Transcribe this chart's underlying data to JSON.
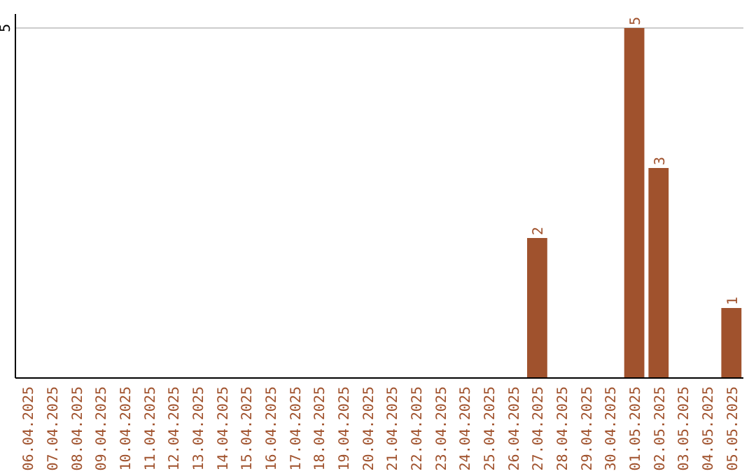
{
  "chart_data": {
    "type": "bar",
    "categories": [
      "06.04.2025",
      "07.04.2025",
      "08.04.2025",
      "09.04.2025",
      "10.04.2025",
      "11.04.2025",
      "12.04.2025",
      "13.04.2025",
      "14.04.2025",
      "15.04.2025",
      "16.04.2025",
      "17.04.2025",
      "18.04.2025",
      "19.04.2025",
      "20.04.2025",
      "21.04.2025",
      "22.04.2025",
      "23.04.2025",
      "24.04.2025",
      "25.04.2025",
      "26.04.2025",
      "27.04.2025",
      "28.04.2025",
      "29.04.2025",
      "30.04.2025",
      "01.05.2025",
      "02.05.2025",
      "03.05.2025",
      "04.05.2025",
      "05.05.2025"
    ],
    "values": [
      null,
      null,
      null,
      null,
      null,
      null,
      null,
      null,
      null,
      null,
      null,
      null,
      null,
      null,
      null,
      null,
      null,
      null,
      null,
      null,
      null,
      2,
      null,
      null,
      null,
      5,
      3,
      null,
      null,
      1
    ],
    "value_labels": [
      null,
      null,
      null,
      null,
      null,
      null,
      null,
      null,
      null,
      null,
      null,
      null,
      null,
      null,
      null,
      null,
      null,
      null,
      null,
      null,
      null,
      "2",
      null,
      null,
      null,
      "5",
      "3",
      null,
      null,
      "1"
    ],
    "color": "#a0522d",
    "ylim": [
      0,
      5.2
    ],
    "yticks": [
      5
    ],
    "grid": "y"
  }
}
